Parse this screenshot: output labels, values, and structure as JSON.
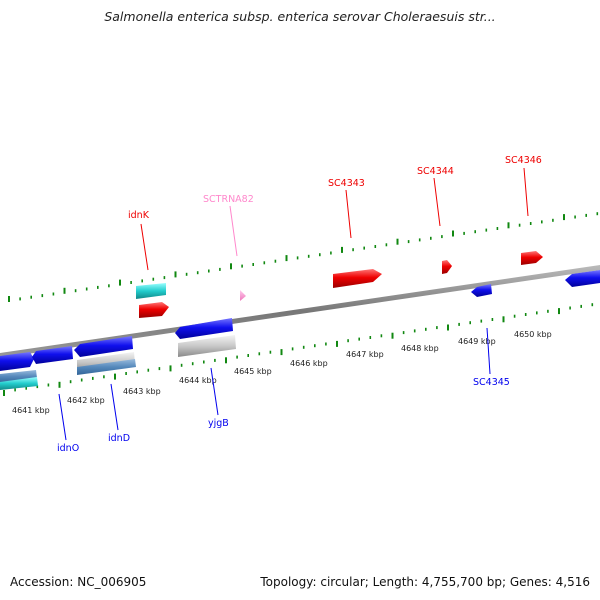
{
  "title": "Salmonella enterica subsp. enterica serovar Choleraesuis str...",
  "footer": {
    "accession": "Accession: NC_006905",
    "topology": "Topology: circular; Length: 4,755,700 bp; Genes: 4,516"
  },
  "colors": {
    "forward_gene": "#ee0000",
    "reverse_gene": "#0000ee",
    "trna": "#ff88cc",
    "ticks": "#118811",
    "backbone": "#888888"
  },
  "scale_labels": [
    "4641 kbp",
    "4642 kbp",
    "4643 kbp",
    "4644 kbp",
    "4645 kbp",
    "4646 kbp",
    "4647 kbp",
    "4648 kbp",
    "4649 kbp",
    "4650 kbp"
  ],
  "gene_labels": {
    "idnK": "idnK",
    "sctrna82": "SCTRNA82",
    "sc4343": "SC4343",
    "sc4344": "SC4344",
    "sc4346": "SC4346",
    "sc4345": "SC4345",
    "idnO": "idnO",
    "idnD": "idnD",
    "yjgB": "yjgB"
  }
}
